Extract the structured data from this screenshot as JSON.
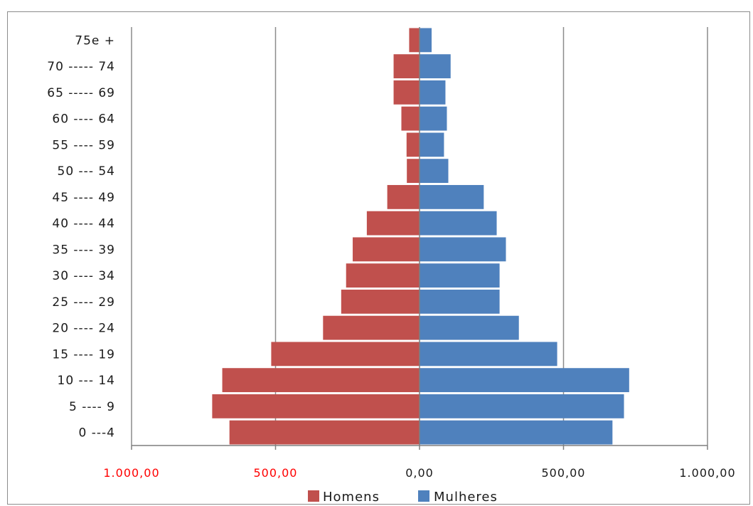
{
  "chart_data": {
    "type": "bar",
    "orientation": "horizontal",
    "layout": "population-pyramid",
    "categories": [
      "0 ---4",
      "5 ---- 9",
      "10 --- 14",
      "15 ---- 19",
      "20 ---- 24",
      "25 ---- 29",
      "30 ---- 34",
      "35 ---- 39",
      "40 ---- 44",
      "45 ---- 49",
      "50 --- 54",
      "55 ---- 59",
      "60 ---- 64",
      "65 ----- 69",
      "70 ----- 74",
      "75e +"
    ],
    "series": [
      {
        "name": "Homens",
        "color": "#c0504d",
        "direction": "left",
        "values": [
          660,
          720,
          685,
          515,
          335,
          272,
          255,
          232,
          183,
          112,
          44,
          45,
          63,
          90,
          90,
          36
        ]
      },
      {
        "name": "Mulheres",
        "color": "#4f81bd",
        "direction": "right",
        "values": [
          670,
          710,
          728,
          478,
          345,
          278,
          278,
          300,
          268,
          223,
          100,
          85,
          95,
          90,
          108,
          42
        ]
      }
    ],
    "xlim": [
      -1000,
      1000
    ],
    "x_ticks": [
      {
        "value": -1000,
        "label": "1.000,00",
        "color": "#ff0000"
      },
      {
        "value": -500,
        "label": "500,00",
        "color": "#ff0000"
      },
      {
        "value": 0,
        "label": "0,00",
        "color": "#1a1a1a"
      },
      {
        "value": 500,
        "label": "500,00",
        "color": "#1a1a1a"
      },
      {
        "value": 1000,
        "label": "1.000,00",
        "color": "#1a1a1a"
      }
    ],
    "grid": true,
    "legend": "bottom"
  }
}
